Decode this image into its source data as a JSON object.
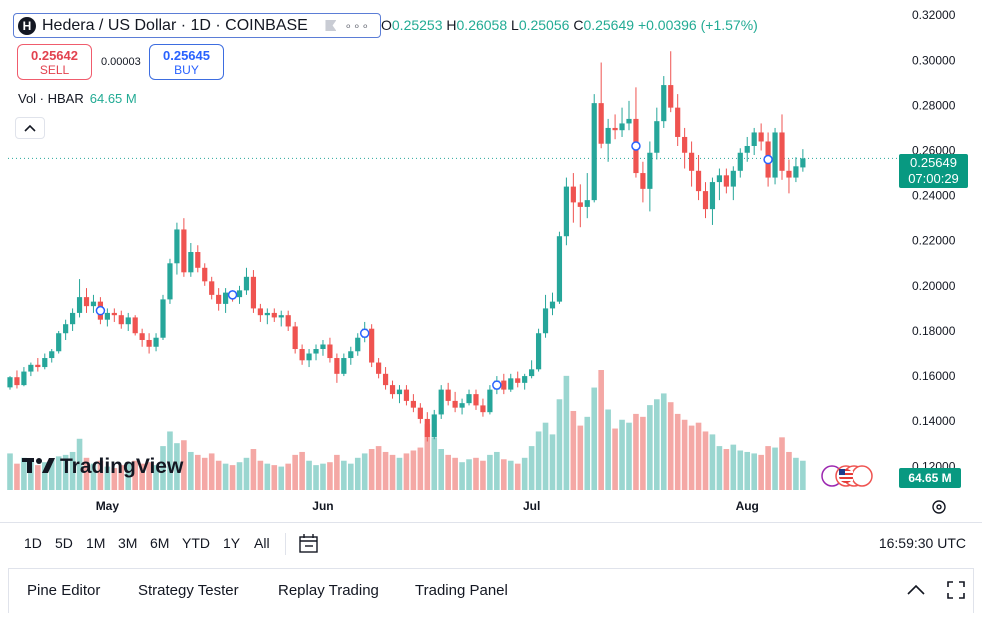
{
  "header": {
    "symbol_icon": "H",
    "title": "Hedera / US Dollar · 1D · COINBASE",
    "ohlc": {
      "o_label": "O",
      "o": "0.25253",
      "h_label": "H",
      "h": "0.26058",
      "l_label": "L",
      "l": "0.25056",
      "c_label": "C",
      "c": "0.25649",
      "change": "+0.00396 (+1.57%)"
    }
  },
  "trade": {
    "sell_price": "0.25642",
    "sell_label": "SELL",
    "spread": "0.00003",
    "buy_price": "0.25645",
    "buy_label": "BUY"
  },
  "volume_legend": {
    "label": "Vol · HBAR",
    "value": "64.65 M"
  },
  "logo_text": "TradingView",
  "price_tag": {
    "price": "0.25649",
    "countdown": "07:00:29"
  },
  "volume_tag": "64.65 M",
  "toolbar": {
    "ranges": [
      "1D",
      "5D",
      "1M",
      "3M",
      "6M",
      "YTD",
      "1Y",
      "All"
    ],
    "time": "16:59:30 UTC"
  },
  "bottom_tabs": [
    "Pine Editor",
    "Strategy Tester",
    "Replay Trading",
    "Trading Panel"
  ],
  "colors": {
    "up": "#26a69a",
    "down": "#ef5350",
    "up_vol": "#9ad6d0",
    "down_vol": "#f4a8a5",
    "accent": "#2962ff"
  },
  "chart_data": {
    "type": "candlestick",
    "symbol": "HBAR/USD",
    "interval": "1D",
    "y_axis": {
      "ticks": [
        "0.12000",
        "0.14000",
        "0.16000",
        "0.18000",
        "0.20000",
        "0.22000",
        "0.24000",
        "0.26000",
        "0.28000",
        "0.30000",
        "0.32000"
      ],
      "range": [
        0.1095,
        0.3245
      ]
    },
    "x_axis": {
      "labels": [
        {
          "text": "May",
          "index": 14
        },
        {
          "text": "Jun",
          "index": 45
        },
        {
          "text": "Jul",
          "index": 75
        },
        {
          "text": "Aug",
          "index": 106
        }
      ]
    },
    "last_price": 0.25649,
    "series": [
      {
        "o": 0.155,
        "h": 0.16,
        "l": 0.154,
        "c": 0.1595,
        "v": 25
      },
      {
        "o": 0.1595,
        "h": 0.1625,
        "l": 0.1545,
        "c": 0.156,
        "v": 18
      },
      {
        "o": 0.156,
        "h": 0.164,
        "l": 0.1555,
        "c": 0.162,
        "v": 22
      },
      {
        "o": 0.162,
        "h": 0.166,
        "l": 0.16,
        "c": 0.165,
        "v": 20
      },
      {
        "o": 0.165,
        "h": 0.168,
        "l": 0.162,
        "c": 0.164,
        "v": 17
      },
      {
        "o": 0.164,
        "h": 0.17,
        "l": 0.163,
        "c": 0.168,
        "v": 19
      },
      {
        "o": 0.168,
        "h": 0.172,
        "l": 0.166,
        "c": 0.171,
        "v": 21
      },
      {
        "o": 0.171,
        "h": 0.18,
        "l": 0.17,
        "c": 0.179,
        "v": 23
      },
      {
        "o": 0.179,
        "h": 0.185,
        "l": 0.176,
        "c": 0.183,
        "v": 24
      },
      {
        "o": 0.183,
        "h": 0.19,
        "l": 0.18,
        "c": 0.188,
        "v": 26
      },
      {
        "o": 0.188,
        "h": 0.203,
        "l": 0.186,
        "c": 0.195,
        "v": 35
      },
      {
        "o": 0.195,
        "h": 0.199,
        "l": 0.188,
        "c": 0.191,
        "v": 22
      },
      {
        "o": 0.191,
        "h": 0.196,
        "l": 0.188,
        "c": 0.193,
        "v": 18
      },
      {
        "o": 0.193,
        "h": 0.195,
        "l": 0.183,
        "c": 0.185,
        "v": 20
      },
      {
        "o": 0.185,
        "h": 0.19,
        "l": 0.182,
        "c": 0.188,
        "v": 16
      },
      {
        "o": 0.188,
        "h": 0.19,
        "l": 0.184,
        "c": 0.187,
        "v": 15
      },
      {
        "o": 0.187,
        "h": 0.189,
        "l": 0.181,
        "c": 0.183,
        "v": 17
      },
      {
        "o": 0.183,
        "h": 0.188,
        "l": 0.18,
        "c": 0.186,
        "v": 19
      },
      {
        "o": 0.186,
        "h": 0.187,
        "l": 0.178,
        "c": 0.179,
        "v": 20
      },
      {
        "o": 0.179,
        "h": 0.181,
        "l": 0.173,
        "c": 0.176,
        "v": 18
      },
      {
        "o": 0.176,
        "h": 0.179,
        "l": 0.17,
        "c": 0.173,
        "v": 19
      },
      {
        "o": 0.173,
        "h": 0.179,
        "l": 0.171,
        "c": 0.177,
        "v": 17
      },
      {
        "o": 0.177,
        "h": 0.196,
        "l": 0.176,
        "c": 0.194,
        "v": 30
      },
      {
        "o": 0.194,
        "h": 0.212,
        "l": 0.192,
        "c": 0.21,
        "v": 40
      },
      {
        "o": 0.21,
        "h": 0.228,
        "l": 0.205,
        "c": 0.225,
        "v": 32
      },
      {
        "o": 0.225,
        "h": 0.23,
        "l": 0.204,
        "c": 0.206,
        "v": 34
      },
      {
        "o": 0.206,
        "h": 0.219,
        "l": 0.204,
        "c": 0.215,
        "v": 26
      },
      {
        "o": 0.215,
        "h": 0.218,
        "l": 0.206,
        "c": 0.208,
        "v": 24
      },
      {
        "o": 0.208,
        "h": 0.21,
        "l": 0.2,
        "c": 0.202,
        "v": 22
      },
      {
        "o": 0.202,
        "h": 0.204,
        "l": 0.194,
        "c": 0.196,
        "v": 25
      },
      {
        "o": 0.196,
        "h": 0.199,
        "l": 0.189,
        "c": 0.192,
        "v": 20
      },
      {
        "o": 0.192,
        "h": 0.199,
        "l": 0.188,
        "c": 0.197,
        "v": 18
      },
      {
        "o": 0.197,
        "h": 0.198,
        "l": 0.193,
        "c": 0.195,
        "v": 17
      },
      {
        "o": 0.195,
        "h": 0.2,
        "l": 0.192,
        "c": 0.198,
        "v": 19
      },
      {
        "o": 0.198,
        "h": 0.208,
        "l": 0.196,
        "c": 0.204,
        "v": 22
      },
      {
        "o": 0.204,
        "h": 0.207,
        "l": 0.188,
        "c": 0.19,
        "v": 28
      },
      {
        "o": 0.19,
        "h": 0.192,
        "l": 0.184,
        "c": 0.187,
        "v": 20
      },
      {
        "o": 0.187,
        "h": 0.19,
        "l": 0.183,
        "c": 0.188,
        "v": 18
      },
      {
        "o": 0.188,
        "h": 0.19,
        "l": 0.184,
        "c": 0.186,
        "v": 17
      },
      {
        "o": 0.186,
        "h": 0.189,
        "l": 0.182,
        "c": 0.187,
        "v": 16
      },
      {
        "o": 0.187,
        "h": 0.189,
        "l": 0.18,
        "c": 0.182,
        "v": 18
      },
      {
        "o": 0.182,
        "h": 0.184,
        "l": 0.17,
        "c": 0.172,
        "v": 24
      },
      {
        "o": 0.172,
        "h": 0.174,
        "l": 0.165,
        "c": 0.167,
        "v": 26
      },
      {
        "o": 0.167,
        "h": 0.172,
        "l": 0.164,
        "c": 0.17,
        "v": 20
      },
      {
        "o": 0.17,
        "h": 0.174,
        "l": 0.167,
        "c": 0.172,
        "v": 17
      },
      {
        "o": 0.172,
        "h": 0.176,
        "l": 0.169,
        "c": 0.174,
        "v": 18
      },
      {
        "o": 0.174,
        "h": 0.177,
        "l": 0.166,
        "c": 0.168,
        "v": 19
      },
      {
        "o": 0.168,
        "h": 0.17,
        "l": 0.157,
        "c": 0.161,
        "v": 24
      },
      {
        "o": 0.161,
        "h": 0.17,
        "l": 0.16,
        "c": 0.168,
        "v": 20
      },
      {
        "o": 0.168,
        "h": 0.173,
        "l": 0.165,
        "c": 0.171,
        "v": 18
      },
      {
        "o": 0.171,
        "h": 0.179,
        "l": 0.169,
        "c": 0.177,
        "v": 22
      },
      {
        "o": 0.177,
        "h": 0.184,
        "l": 0.175,
        "c": 0.181,
        "v": 25
      },
      {
        "o": 0.181,
        "h": 0.183,
        "l": 0.164,
        "c": 0.166,
        "v": 28
      },
      {
        "o": 0.166,
        "h": 0.168,
        "l": 0.159,
        "c": 0.161,
        "v": 30
      },
      {
        "o": 0.161,
        "h": 0.164,
        "l": 0.154,
        "c": 0.156,
        "v": 26
      },
      {
        "o": 0.156,
        "h": 0.158,
        "l": 0.15,
        "c": 0.152,
        "v": 24
      },
      {
        "o": 0.152,
        "h": 0.156,
        "l": 0.148,
        "c": 0.154,
        "v": 22
      },
      {
        "o": 0.154,
        "h": 0.156,
        "l": 0.147,
        "c": 0.149,
        "v": 25
      },
      {
        "o": 0.149,
        "h": 0.152,
        "l": 0.144,
        "c": 0.146,
        "v": 27
      },
      {
        "o": 0.146,
        "h": 0.148,
        "l": 0.139,
        "c": 0.141,
        "v": 29
      },
      {
        "o": 0.141,
        "h": 0.144,
        "l": 0.131,
        "c": 0.133,
        "v": 45
      },
      {
        "o": 0.133,
        "h": 0.145,
        "l": 0.132,
        "c": 0.143,
        "v": 36
      },
      {
        "o": 0.143,
        "h": 0.156,
        "l": 0.141,
        "c": 0.154,
        "v": 28
      },
      {
        "o": 0.154,
        "h": 0.157,
        "l": 0.147,
        "c": 0.149,
        "v": 24
      },
      {
        "o": 0.149,
        "h": 0.153,
        "l": 0.144,
        "c": 0.146,
        "v": 22
      },
      {
        "o": 0.146,
        "h": 0.15,
        "l": 0.143,
        "c": 0.148,
        "v": 19
      },
      {
        "o": 0.148,
        "h": 0.154,
        "l": 0.147,
        "c": 0.152,
        "v": 21
      },
      {
        "o": 0.152,
        "h": 0.154,
        "l": 0.145,
        "c": 0.147,
        "v": 22
      },
      {
        "o": 0.147,
        "h": 0.15,
        "l": 0.142,
        "c": 0.144,
        "v": 20
      },
      {
        "o": 0.144,
        "h": 0.156,
        "l": 0.143,
        "c": 0.154,
        "v": 24
      },
      {
        "o": 0.154,
        "h": 0.16,
        "l": 0.152,
        "c": 0.158,
        "v": 26
      },
      {
        "o": 0.158,
        "h": 0.161,
        "l": 0.152,
        "c": 0.154,
        "v": 21
      },
      {
        "o": 0.154,
        "h": 0.161,
        "l": 0.153,
        "c": 0.159,
        "v": 20
      },
      {
        "o": 0.159,
        "h": 0.162,
        "l": 0.155,
        "c": 0.157,
        "v": 18
      },
      {
        "o": 0.157,
        "h": 0.161,
        "l": 0.154,
        "c": 0.16,
        "v": 22
      },
      {
        "o": 0.16,
        "h": 0.167,
        "l": 0.159,
        "c": 0.163,
        "v": 30
      },
      {
        "o": 0.163,
        "h": 0.181,
        "l": 0.162,
        "c": 0.179,
        "v": 40
      },
      {
        "o": 0.179,
        "h": 0.196,
        "l": 0.177,
        "c": 0.19,
        "v": 46
      },
      {
        "o": 0.19,
        "h": 0.197,
        "l": 0.187,
        "c": 0.193,
        "v": 38
      },
      {
        "o": 0.193,
        "h": 0.224,
        "l": 0.192,
        "c": 0.222,
        "v": 62
      },
      {
        "o": 0.222,
        "h": 0.248,
        "l": 0.218,
        "c": 0.244,
        "v": 78
      },
      {
        "o": 0.244,
        "h": 0.25,
        "l": 0.228,
        "c": 0.237,
        "v": 54
      },
      {
        "o": 0.237,
        "h": 0.245,
        "l": 0.226,
        "c": 0.235,
        "v": 44
      },
      {
        "o": 0.235,
        "h": 0.25,
        "l": 0.23,
        "c": 0.238,
        "v": 50
      },
      {
        "o": 0.238,
        "h": 0.285,
        "l": 0.237,
        "c": 0.281,
        "v": 70
      },
      {
        "o": 0.281,
        "h": 0.299,
        "l": 0.261,
        "c": 0.263,
        "v": 82
      },
      {
        "o": 0.263,
        "h": 0.274,
        "l": 0.255,
        "c": 0.27,
        "v": 55
      },
      {
        "o": 0.27,
        "h": 0.276,
        "l": 0.265,
        "c": 0.269,
        "v": 42
      },
      {
        "o": 0.269,
        "h": 0.279,
        "l": 0.266,
        "c": 0.272,
        "v": 48
      },
      {
        "o": 0.272,
        "h": 0.282,
        "l": 0.269,
        "c": 0.274,
        "v": 46
      },
      {
        "o": 0.274,
        "h": 0.288,
        "l": 0.248,
        "c": 0.25,
        "v": 52
      },
      {
        "o": 0.25,
        "h": 0.255,
        "l": 0.237,
        "c": 0.243,
        "v": 50
      },
      {
        "o": 0.243,
        "h": 0.264,
        "l": 0.233,
        "c": 0.259,
        "v": 58
      },
      {
        "o": 0.259,
        "h": 0.279,
        "l": 0.256,
        "c": 0.273,
        "v": 62
      },
      {
        "o": 0.273,
        "h": 0.293,
        "l": 0.27,
        "c": 0.289,
        "v": 66
      },
      {
        "o": 0.289,
        "h": 0.304,
        "l": 0.277,
        "c": 0.279,
        "v": 60
      },
      {
        "o": 0.279,
        "h": 0.285,
        "l": 0.262,
        "c": 0.266,
        "v": 52
      },
      {
        "o": 0.266,
        "h": 0.27,
        "l": 0.252,
        "c": 0.259,
        "v": 48
      },
      {
        "o": 0.259,
        "h": 0.264,
        "l": 0.244,
        "c": 0.251,
        "v": 44
      },
      {
        "o": 0.251,
        "h": 0.258,
        "l": 0.238,
        "c": 0.242,
        "v": 46
      },
      {
        "o": 0.242,
        "h": 0.246,
        "l": 0.23,
        "c": 0.234,
        "v": 40
      },
      {
        "o": 0.234,
        "h": 0.248,
        "l": 0.227,
        "c": 0.246,
        "v": 38
      },
      {
        "o": 0.246,
        "h": 0.252,
        "l": 0.238,
        "c": 0.249,
        "v": 30
      },
      {
        "o": 0.249,
        "h": 0.252,
        "l": 0.241,
        "c": 0.244,
        "v": 28
      },
      {
        "o": 0.244,
        "h": 0.253,
        "l": 0.238,
        "c": 0.251,
        "v": 31
      },
      {
        "o": 0.251,
        "h": 0.261,
        "l": 0.248,
        "c": 0.259,
        "v": 27
      },
      {
        "o": 0.259,
        "h": 0.266,
        "l": 0.255,
        "c": 0.262,
        "v": 26
      },
      {
        "o": 0.262,
        "h": 0.27,
        "l": 0.258,
        "c": 0.268,
        "v": 25
      },
      {
        "o": 0.268,
        "h": 0.272,
        "l": 0.26,
        "c": 0.264,
        "v": 24
      },
      {
        "o": 0.264,
        "h": 0.268,
        "l": 0.244,
        "c": 0.248,
        "v": 30
      },
      {
        "o": 0.248,
        "h": 0.27,
        "l": 0.245,
        "c": 0.268,
        "v": 29
      },
      {
        "o": 0.268,
        "h": 0.276,
        "l": 0.247,
        "c": 0.251,
        "v": 36
      },
      {
        "o": 0.251,
        "h": 0.256,
        "l": 0.241,
        "c": 0.248,
        "v": 26
      },
      {
        "o": 0.248,
        "h": 0.257,
        "l": 0.246,
        "c": 0.253,
        "v": 22
      },
      {
        "o": 0.2525,
        "h": 0.2606,
        "l": 0.2506,
        "c": 0.2565,
        "v": 20
      }
    ]
  }
}
